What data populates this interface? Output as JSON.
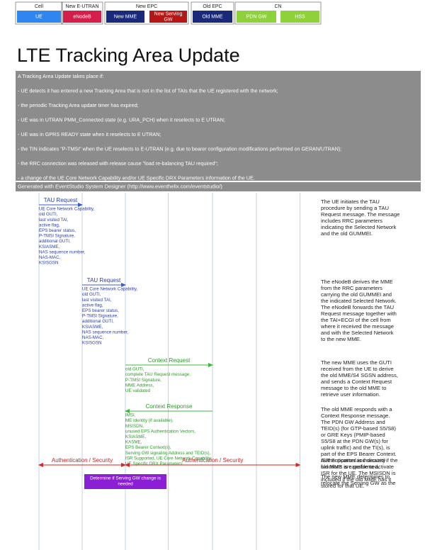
{
  "header": {
    "groups": [
      {
        "label": "Cell",
        "entities": [
          {
            "label": "UE",
            "color": "#2f86ef"
          }
        ]
      },
      {
        "label": "New E-UTRAN",
        "entities": [
          {
            "label": "eNodeB",
            "color": "#d41e4b"
          }
        ]
      },
      {
        "label": "New EPC",
        "entities": [
          {
            "label": "New MME",
            "color": "#1b2a78"
          },
          {
            "label": "New Serving GW",
            "color": "#b51616"
          }
        ]
      },
      {
        "label": "Old EPC",
        "entities": [
          {
            "label": "Old MME",
            "color": "#1b2a78"
          }
        ]
      },
      {
        "label": "CN",
        "entities": [
          {
            "label": "PDN GW",
            "color": "#8ed13a"
          },
          {
            "label": "HSS",
            "color": "#8ed13a"
          }
        ]
      }
    ]
  },
  "title": "LTE Tracking Area Update",
  "intro": [
    "A Tracking Area Update takes place if:",
    "- UE detects it has entered a new Tracking Area that is not in the list of TAIs that the UE registered with the network;",
    "- the periodic Tracking Area update timer has expired;",
    "- UE was in UTRAN PMM_Connected state (e.g. URA_PCH) when it reselects to E UTRAN;",
    "- UE was in GPRS READY state when it reselects to E UTRAN;",
    "- the TIN indicates \"P-TMSI\" when the UE reselects to E-UTRAN (e.g. due to bearer configuration modifications performed on GERAN/UTRAN);",
    "- the RRC connection was released with release cause \"load re-balancing TAU required\";",
    "- a change of the UE Core Network Capability and/or UE Specific DRX Parameters information of the UE."
  ],
  "generated": "Generated with EventStudio System Designer (http://www.eventhelix.com/eventstudio/)",
  "messages": [
    {
      "label": "TAU Request",
      "params": [
        "UE Core Network Capability,",
        "old GUTI,",
        "last visited TAI,",
        "active flag,",
        "EPS bearer status,",
        "P-TMSI Signature,",
        "additional GUTI,",
        "KSIASME,",
        "NAS sequence number,",
        "NAS-MAC,",
        "KSISGSN"
      ],
      "note": [
        "The UE initiates the TAU",
        "procedure by sending a TAU",
        "Request message. The message",
        "includes RRC parameters",
        "indicating the Selected Network",
        "and the old GUMMEI."
      ]
    },
    {
      "label": "TAU Request",
      "params": [
        "UE Core Network Capability,",
        "old GUTI,",
        "last visited TAI,",
        "active flag,",
        "EPS bearer status,",
        "P-TMSI Signature,",
        "additional GUTI,",
        "KSIASME,",
        "NAS sequence number,",
        "NAS-MAC,",
        "KSISGSN"
      ],
      "note": [
        "The eNodeB derives the MME",
        "from the RRC parameters",
        "carrying the old GUMMEI and",
        "the indicated Selected Network.",
        "The eNodeB forwards the TAU",
        "Request message together with",
        "the TAI+ECGI of the cell from",
        "where it received the message",
        "and with the Selected Network",
        "to the new MME."
      ]
    },
    {
      "label": "Context Request",
      "params": [
        "old GUTI,",
        "complete TAU Request message,",
        "P-TMSI Signature,",
        "MME Address,",
        "UE validated"
      ],
      "note": [
        "The new MME uses the GUTI",
        "received from the UE to derive",
        "the old MME/S4 SGSN address,",
        "and sends a Context Request",
        "message to the old MME to",
        "retrieve user information."
      ]
    },
    {
      "label": "Context Response",
      "params": [
        "IMSI,",
        "ME Identity (if available),",
        "MSISDN,",
        "unused EPS Authentication Vectors,",
        "KSIASME,",
        "KASME,",
        "EPS Bearer Context(s),",
        "Serving GW signaling Address and TEID(s),",
        "ISR Supported, UE Core Network Capability,",
        "UE Specific DRX Parameters"
      ],
      "note": [
        "The old MME responds with a",
        "Context Response message.",
        "The PDN GW Address and",
        "TEID(s) (for GTP-based S5/S8)",
        "or GRE Keys (PMIP-based",
        "S5/S8 at the PDN GW(s) for",
        "uplink traffic) and the TI(s), is",
        "part of the EPS Bearer Context.",
        "ISR Supported is indicated if the",
        "old MME is capable to activate",
        "ISR for the UE. The MSISDN is",
        "included if the old MME has it",
        "stored for that UE."
      ]
    }
  ],
  "security": {
    "label": "Authentication / Security",
    "note": [
      "Authentication and security",
      "functions are performed."
    ]
  },
  "action": {
    "lines": [
      "Determine if Serving GW change is",
      "needed"
    ],
    "note": [
      "The new MME determines to",
      "relocate the Serving GW as the"
    ]
  }
}
